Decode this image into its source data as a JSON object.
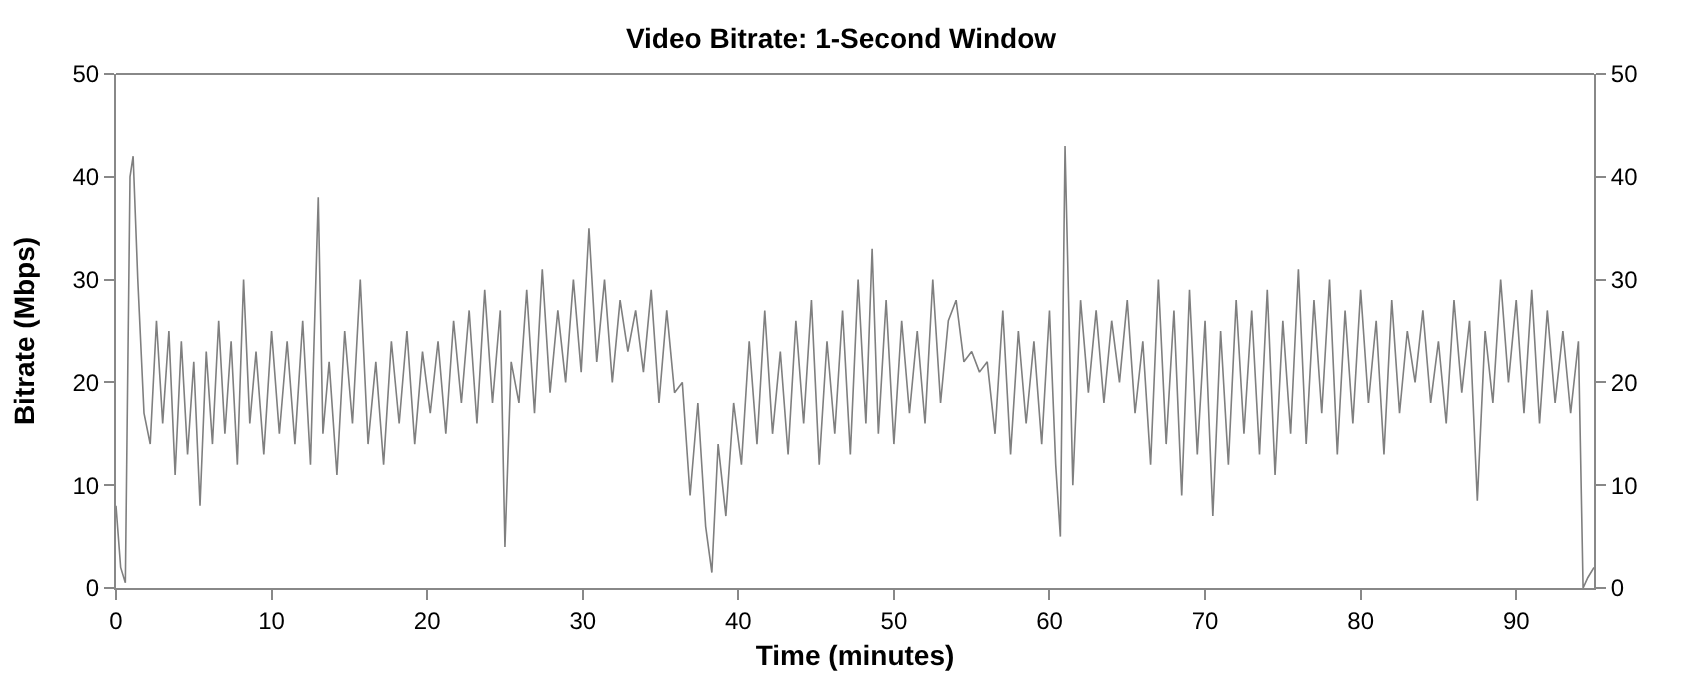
{
  "chart_data": {
    "type": "line",
    "title": "Video Bitrate: 1-Second Window",
    "xlabel": "Time (minutes)",
    "ylabel": "Bitrate (Mbps)",
    "xlim": [
      0,
      95
    ],
    "xticks": [
      0,
      10,
      20,
      30,
      40,
      50,
      60,
      70,
      80,
      90
    ],
    "ylim": [
      0,
      50
    ],
    "yticks": [
      0,
      10,
      20,
      30,
      40,
      50
    ],
    "y2lim": [
      0,
      50
    ],
    "y2ticks": [
      0,
      10,
      20,
      30,
      40,
      50
    ],
    "series": [
      {
        "color": "#7f7f7f",
        "x": [
          0,
          0.3,
          0.6,
          0.9,
          1.1,
          1.4,
          1.8,
          2.2,
          2.6,
          3.0,
          3.4,
          3.8,
          4.2,
          4.6,
          5.0,
          5.4,
          5.8,
          6.2,
          6.6,
          7.0,
          7.4,
          7.8,
          8.2,
          8.6,
          9.0,
          9.5,
          10.0,
          10.5,
          11.0,
          11.5,
          12.0,
          12.5,
          13.0,
          13.3,
          13.7,
          14.2,
          14.7,
          15.2,
          15.7,
          16.2,
          16.7,
          17.2,
          17.7,
          18.2,
          18.7,
          19.2,
          19.7,
          20.2,
          20.7,
          21.2,
          21.7,
          22.2,
          22.7,
          23.2,
          23.7,
          24.2,
          24.7,
          25.0,
          25.4,
          25.9,
          26.4,
          26.9,
          27.4,
          27.9,
          28.4,
          28.9,
          29.4,
          29.9,
          30.4,
          30.9,
          31.4,
          31.9,
          32.4,
          32.9,
          33.4,
          33.9,
          34.4,
          34.9,
          35.4,
          35.9,
          36.4,
          36.9,
          37.4,
          37.9,
          38.3,
          38.7,
          39.2,
          39.7,
          40.2,
          40.7,
          41.2,
          41.7,
          42.2,
          42.7,
          43.2,
          43.7,
          44.2,
          44.7,
          45.2,
          45.7,
          46.2,
          46.7,
          47.2,
          47.7,
          48.2,
          48.6,
          49.0,
          49.5,
          50.0,
          50.5,
          51.0,
          51.5,
          52.0,
          52.5,
          53.0,
          53.5,
          54.0,
          54.5,
          55.0,
          55.5,
          56.0,
          56.5,
          57.0,
          57.5,
          58.0,
          58.5,
          59.0,
          59.5,
          60.0,
          60.4,
          60.7,
          61.0,
          61.5,
          62.0,
          62.5,
          63.0,
          63.5,
          64.0,
          64.5,
          65.0,
          65.5,
          66.0,
          66.5,
          67.0,
          67.5,
          68.0,
          68.5,
          69.0,
          69.5,
          70.0,
          70.5,
          71.0,
          71.5,
          72.0,
          72.5,
          73.0,
          73.5,
          74.0,
          74.5,
          75.0,
          75.5,
          76.0,
          76.5,
          77.0,
          77.5,
          78.0,
          78.5,
          79.0,
          79.5,
          80.0,
          80.5,
          81.0,
          81.5,
          82.0,
          82.5,
          83.0,
          83.5,
          84.0,
          84.5,
          85.0,
          85.5,
          86.0,
          86.5,
          87.0,
          87.5,
          88.0,
          88.5,
          89.0,
          89.5,
          90.0,
          90.5,
          91.0,
          91.5,
          92.0,
          92.5,
          93.0,
          93.5,
          94.0,
          94.3,
          94.6,
          95.0
        ],
        "values": [
          8,
          2,
          0.5,
          40,
          42,
          30,
          17,
          14,
          26,
          16,
          25,
          11,
          24,
          13,
          22,
          8,
          23,
          14,
          26,
          15,
          24,
          12,
          30,
          16,
          23,
          13,
          25,
          15,
          24,
          14,
          26,
          12,
          38,
          15,
          22,
          11,
          25,
          16,
          30,
          14,
          22,
          12,
          24,
          16,
          25,
          14,
          23,
          17,
          24,
          15,
          26,
          18,
          27,
          16,
          29,
          18,
          27,
          4,
          22,
          18,
          29,
          17,
          31,
          19,
          27,
          20,
          30,
          21,
          35,
          22,
          30,
          20,
          28,
          23,
          27,
          21,
          29,
          18,
          27,
          19,
          20,
          9,
          18,
          6,
          1.5,
          14,
          7,
          18,
          12,
          24,
          14,
          27,
          15,
          23,
          13,
          26,
          16,
          28,
          12,
          24,
          15,
          27,
          13,
          30,
          16,
          33,
          15,
          28,
          14,
          26,
          17,
          25,
          16,
          30,
          18,
          26,
          28,
          22,
          23,
          21,
          22,
          15,
          27,
          13,
          25,
          16,
          24,
          14,
          27,
          12,
          5,
          43,
          10,
          28,
          19,
          27,
          18,
          26,
          20,
          28,
          17,
          24,
          12,
          30,
          14,
          27,
          9,
          29,
          13,
          26,
          7,
          25,
          12,
          28,
          15,
          27,
          13,
          29,
          11,
          26,
          15,
          31,
          14,
          28,
          17,
          30,
          13,
          27,
          16,
          29,
          18,
          26,
          13,
          28,
          17,
          25,
          20,
          27,
          18,
          24,
          16,
          28,
          19,
          26,
          8.5,
          25,
          18,
          30,
          20,
          28,
          17,
          29,
          16,
          27,
          18,
          25,
          17,
          24,
          0,
          1,
          2
        ]
      }
    ]
  }
}
